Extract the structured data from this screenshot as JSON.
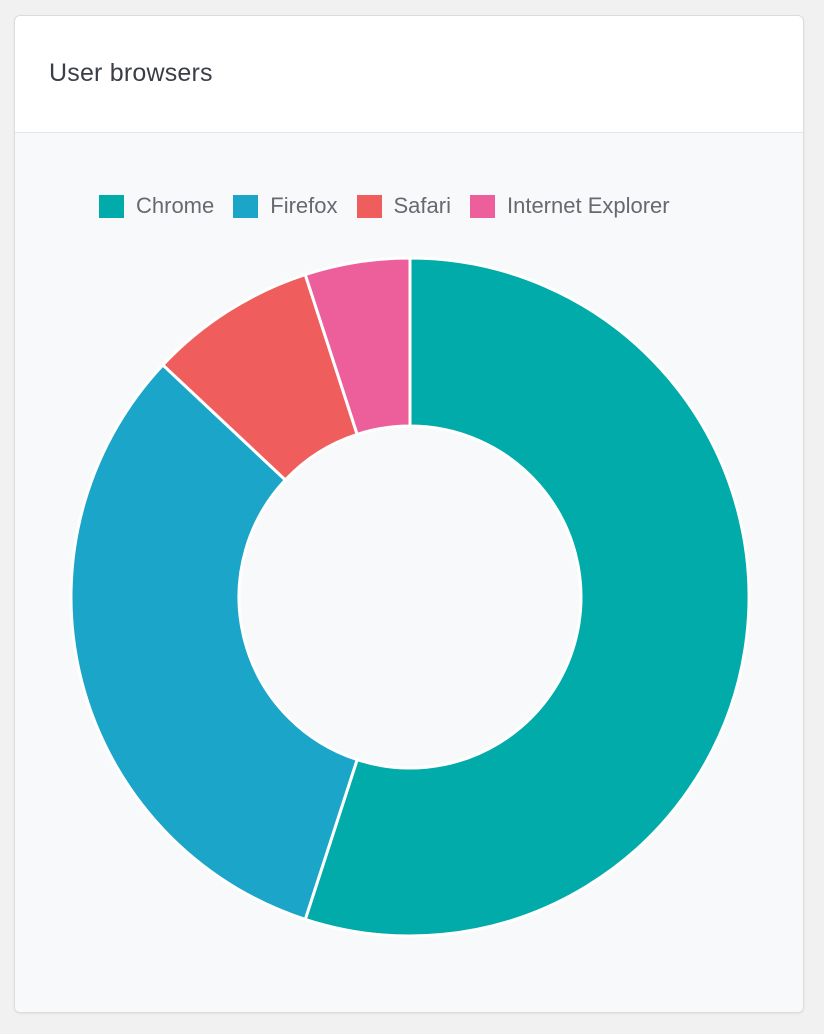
{
  "card": {
    "title": "User browsers"
  },
  "chart_data": {
    "type": "pie",
    "variant": "donut",
    "legend_position": "top",
    "categories": [
      "Chrome",
      "Firefox",
      "Safari",
      "Internet Explorer"
    ],
    "values": [
      55,
      32,
      8,
      5
    ],
    "colors": [
      "#00aba9",
      "#1ba5c9",
      "#ef5e5d",
      "#ec5f9a"
    ]
  }
}
